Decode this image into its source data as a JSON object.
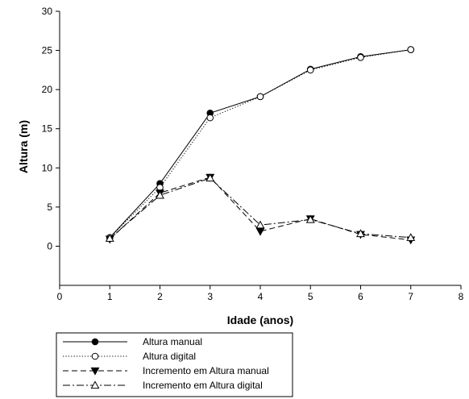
{
  "chart_data": {
    "type": "line",
    "title": "",
    "xlabel": "Idade (anos)",
    "ylabel": "Altura (m)",
    "xlim": [
      0,
      8
    ],
    "ylim": [
      -5,
      30
    ],
    "xticks": [
      0,
      1,
      2,
      3,
      4,
      5,
      6,
      7,
      8
    ],
    "yticks": [
      0,
      5,
      10,
      15,
      20,
      25,
      30
    ],
    "grid": false,
    "legend_position": "bottom-left, below plot",
    "series": [
      {
        "name": "Altura manual",
        "line": "solid",
        "marker": "filled-circle",
        "x": [
          1,
          2,
          3,
          4,
          5,
          6,
          7
        ],
        "y": [
          1.1,
          8.0,
          17.0,
          19.1,
          22.6,
          24.2,
          25.1
        ]
      },
      {
        "name": "Altura digital",
        "line": "dotted",
        "marker": "open-circle",
        "x": [
          1,
          2,
          3,
          4,
          5,
          6,
          7
        ],
        "y": [
          1.1,
          7.5,
          16.4,
          19.1,
          22.5,
          24.1,
          25.1
        ]
      },
      {
        "name": "Incremento em Altura manual",
        "line": "dashed",
        "marker": "filled-triangle-down",
        "x": [
          1,
          2,
          3,
          4,
          5,
          6,
          7
        ],
        "y": [
          0.9,
          6.8,
          8.8,
          1.9,
          3.5,
          1.5,
          0.8
        ]
      },
      {
        "name": "Incremento em Altura digital",
        "line": "dash-dot",
        "marker": "open-triangle-up",
        "x": [
          1,
          2,
          3,
          4,
          5,
          6,
          7
        ],
        "y": [
          1.0,
          6.5,
          8.7,
          2.7,
          3.4,
          1.6,
          1.1
        ]
      }
    ]
  }
}
